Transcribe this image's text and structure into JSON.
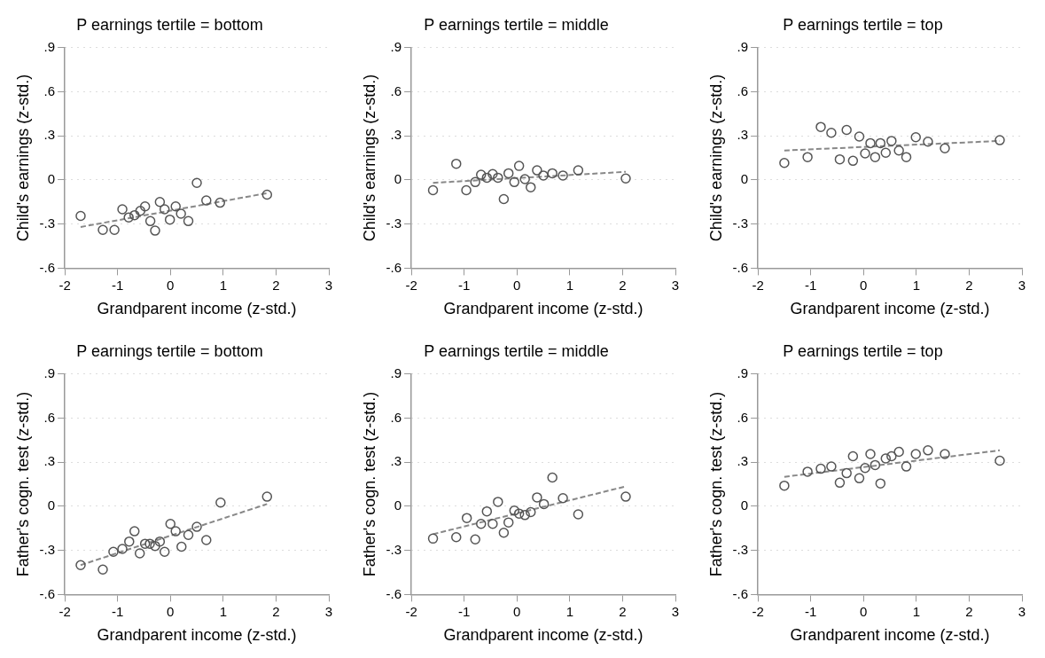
{
  "chart_data": [
    {
      "type": "scatter",
      "title": "P earnings tertile = bottom",
      "xlabel": "Grandparent income (z-std.)",
      "ylabel": "Child's earnings (z-std.)",
      "xlim": [
        -2,
        3
      ],
      "xticks": [
        -2,
        -1,
        0,
        1,
        2,
        3
      ],
      "ylim": [
        -0.6,
        0.9
      ],
      "yticks": [
        {
          "value": -0.6,
          "label": "-.6"
        },
        {
          "value": -0.3,
          "label": "-.3"
        },
        {
          "value": 0,
          "label": "0"
        },
        {
          "value": 0.3,
          "label": ".3"
        },
        {
          "value": 0.6,
          "label": ".6"
        },
        {
          "value": 0.9,
          "label": ".9"
        }
      ],
      "grid": "y",
      "series": [
        {
          "type": "scatter",
          "marker": "circle",
          "color": "#555555",
          "x": [
            -1.7,
            -1.28,
            -1.06,
            -0.91,
            -0.79,
            -0.68,
            -0.57,
            -0.48,
            -0.38,
            -0.29,
            -0.2,
            -0.11,
            -0.01,
            0.1,
            0.2,
            0.34,
            0.5,
            0.68,
            0.94,
            1.83
          ],
          "values": [
            -0.245,
            -0.34,
            -0.34,
            -0.2,
            -0.255,
            -0.24,
            -0.21,
            -0.18,
            -0.28,
            -0.345,
            -0.15,
            -0.2,
            -0.27,
            -0.18,
            -0.23,
            -0.28,
            -0.02,
            -0.14,
            -0.155,
            -0.1
          ]
        },
        {
          "type": "line",
          "color": "#888888",
          "line_style": "dashed",
          "x": [
            -1.7,
            1.83
          ],
          "values": [
            -0.32,
            -0.09
          ]
        }
      ]
    },
    {
      "type": "scatter",
      "title": "P earnings tertile = middle",
      "xlabel": "Grandparent income (z-std.)",
      "ylabel": "Child's earnings (z-std.)",
      "xlim": [
        -2,
        3
      ],
      "xticks": [
        -2,
        -1,
        0,
        1,
        2,
        3
      ],
      "ylim": [
        -0.6,
        0.9
      ],
      "yticks": [
        {
          "value": -0.6,
          "label": "-.6"
        },
        {
          "value": -0.3,
          "label": "-.3"
        },
        {
          "value": 0,
          "label": "0"
        },
        {
          "value": 0.3,
          "label": ".3"
        },
        {
          "value": 0.6,
          "label": ".6"
        },
        {
          "value": 0.9,
          "label": ".9"
        }
      ],
      "grid": "y",
      "series": [
        {
          "type": "scatter",
          "marker": "circle",
          "color": "#555555",
          "x": [
            -1.59,
            -1.15,
            -0.96,
            -0.79,
            -0.68,
            -0.57,
            -0.46,
            -0.36,
            -0.25,
            -0.16,
            -0.05,
            0.04,
            0.15,
            0.26,
            0.38,
            0.5,
            0.67,
            0.87,
            1.16,
            2.06
          ],
          "values": [
            -0.07,
            0.11,
            -0.07,
            -0.015,
            0.035,
            0.015,
            0.04,
            0.015,
            -0.13,
            0.045,
            -0.015,
            0.095,
            0.005,
            -0.05,
            0.065,
            0.03,
            0.045,
            0.03,
            0.065,
            0.01
          ]
        },
        {
          "type": "line",
          "color": "#888888",
          "line_style": "dashed",
          "x": [
            -1.59,
            2.06
          ],
          "values": [
            -0.02,
            0.055
          ]
        }
      ]
    },
    {
      "type": "scatter",
      "title": "P earnings tertile = top",
      "xlabel": "Grandparent income (z-std.)",
      "ylabel": "Child's earnings (z-std.)",
      "xlim": [
        -2,
        3
      ],
      "xticks": [
        -2,
        -1,
        0,
        1,
        2,
        3
      ],
      "ylim": [
        -0.6,
        0.9
      ],
      "yticks": [
        {
          "value": -0.6,
          "label": "-.6"
        },
        {
          "value": -0.3,
          "label": "-.3"
        },
        {
          "value": 0,
          "label": "0"
        },
        {
          "value": 0.3,
          "label": ".3"
        },
        {
          "value": 0.6,
          "label": ".6"
        },
        {
          "value": 0.9,
          "label": ".9"
        }
      ],
      "grid": "y",
      "series": [
        {
          "type": "scatter",
          "marker": "circle",
          "color": "#555555",
          "x": [
            -1.5,
            -1.06,
            -0.81,
            -0.61,
            -0.45,
            -0.32,
            -0.2,
            -0.08,
            0.03,
            0.13,
            0.22,
            0.32,
            0.42,
            0.53,
            0.67,
            0.81,
            0.99,
            1.22,
            1.54,
            2.58
          ],
          "values": [
            0.115,
            0.155,
            0.36,
            0.32,
            0.14,
            0.34,
            0.13,
            0.295,
            0.18,
            0.25,
            0.155,
            0.25,
            0.185,
            0.265,
            0.2,
            0.155,
            0.29,
            0.26,
            0.215,
            0.27
          ]
        },
        {
          "type": "line",
          "color": "#888888",
          "line_style": "dashed",
          "x": [
            -1.5,
            2.58
          ],
          "values": [
            0.2,
            0.265
          ]
        }
      ]
    },
    {
      "type": "scatter",
      "title": "P earnings tertile = bottom",
      "xlabel": "Grandparent income (z-std.)",
      "ylabel": "Father's cogn. test (z-std.)",
      "xlim": [
        -2,
        3
      ],
      "xticks": [
        -2,
        -1,
        0,
        1,
        2,
        3
      ],
      "ylim": [
        -0.6,
        0.9
      ],
      "yticks": [
        {
          "value": -0.6,
          "label": "-.6"
        },
        {
          "value": -0.3,
          "label": "-.3"
        },
        {
          "value": 0,
          "label": "0"
        },
        {
          "value": 0.3,
          "label": ".3"
        },
        {
          "value": 0.6,
          "label": ".6"
        },
        {
          "value": 0.9,
          "label": ".9"
        }
      ],
      "grid": "y",
      "series": [
        {
          "type": "scatter",
          "marker": "circle",
          "color": "#555555",
          "x": [
            -1.7,
            -1.28,
            -1.08,
            -0.91,
            -0.78,
            -0.68,
            -0.58,
            -0.48,
            -0.39,
            -0.29,
            -0.2,
            -0.11,
            0.0,
            0.1,
            0.21,
            0.34,
            0.5,
            0.68,
            0.95,
            1.83
          ],
          "values": [
            -0.4,
            -0.43,
            -0.31,
            -0.29,
            -0.24,
            -0.17,
            -0.32,
            -0.255,
            -0.255,
            -0.27,
            -0.24,
            -0.31,
            -0.12,
            -0.17,
            -0.275,
            -0.195,
            -0.14,
            -0.23,
            0.025,
            0.065
          ]
        },
        {
          "type": "line",
          "color": "#888888",
          "line_style": "dashed",
          "x": [
            -1.7,
            1.83
          ],
          "values": [
            -0.4,
            0.015
          ]
        }
      ]
    },
    {
      "type": "scatter",
      "title": "P earnings tertile = middle",
      "xlabel": "Grandparent income (z-std.)",
      "ylabel": "Father's cogn. test (z-std.)",
      "xlim": [
        -2,
        3
      ],
      "xticks": [
        -2,
        -1,
        0,
        1,
        2,
        3
      ],
      "ylim": [
        -0.6,
        0.9
      ],
      "yticks": [
        {
          "value": -0.6,
          "label": "-.6"
        },
        {
          "value": -0.3,
          "label": "-.3"
        },
        {
          "value": 0,
          "label": "0"
        },
        {
          "value": 0.3,
          "label": ".3"
        },
        {
          "value": 0.6,
          "label": ".6"
        },
        {
          "value": 0.9,
          "label": ".9"
        }
      ],
      "grid": "y",
      "series": [
        {
          "type": "scatter",
          "marker": "circle",
          "color": "#555555",
          "x": [
            -1.59,
            -1.15,
            -0.95,
            -0.79,
            -0.68,
            -0.57,
            -0.46,
            -0.36,
            -0.25,
            -0.16,
            -0.05,
            0.04,
            0.15,
            0.26,
            0.38,
            0.51,
            0.67,
            0.87,
            1.16,
            2.06
          ],
          "values": [
            -0.22,
            -0.21,
            -0.08,
            -0.225,
            -0.12,
            -0.035,
            -0.12,
            0.03,
            -0.18,
            -0.11,
            -0.03,
            -0.05,
            -0.06,
            -0.04,
            0.06,
            0.015,
            0.195,
            0.055,
            -0.055,
            0.065
          ]
        },
        {
          "type": "line",
          "color": "#888888",
          "line_style": "dashed",
          "x": [
            -1.59,
            2.06
          ],
          "values": [
            -0.19,
            0.135
          ]
        }
      ]
    },
    {
      "type": "scatter",
      "title": "P earnings tertile = top",
      "xlabel": "Grandparent income (z-std.)",
      "ylabel": "Father's cogn. test (z-std.)",
      "xlim": [
        -2,
        3
      ],
      "xticks": [
        -2,
        -1,
        0,
        1,
        2,
        3
      ],
      "ylim": [
        -0.6,
        0.9
      ],
      "yticks": [
        {
          "value": -0.6,
          "label": "-.6"
        },
        {
          "value": -0.3,
          "label": "-.3"
        },
        {
          "value": 0,
          "label": "0"
        },
        {
          "value": 0.3,
          "label": ".3"
        },
        {
          "value": 0.6,
          "label": ".6"
        },
        {
          "value": 0.9,
          "label": ".9"
        }
      ],
      "grid": "y",
      "series": [
        {
          "type": "scatter",
          "marker": "circle",
          "color": "#555555",
          "x": [
            -1.5,
            -1.06,
            -0.81,
            -0.61,
            -0.45,
            -0.32,
            -0.2,
            -0.08,
            0.03,
            0.13,
            0.22,
            0.32,
            0.42,
            0.53,
            0.67,
            0.81,
            0.99,
            1.22,
            1.54,
            2.58
          ],
          "values": [
            0.14,
            0.235,
            0.255,
            0.27,
            0.16,
            0.225,
            0.34,
            0.19,
            0.26,
            0.355,
            0.28,
            0.155,
            0.325,
            0.34,
            0.37,
            0.27,
            0.355,
            0.38,
            0.355,
            0.31
          ]
        },
        {
          "type": "line",
          "color": "#888888",
          "line_style": "dashed",
          "x": [
            -1.5,
            2.58
          ],
          "values": [
            0.2,
            0.38
          ]
        }
      ]
    }
  ]
}
